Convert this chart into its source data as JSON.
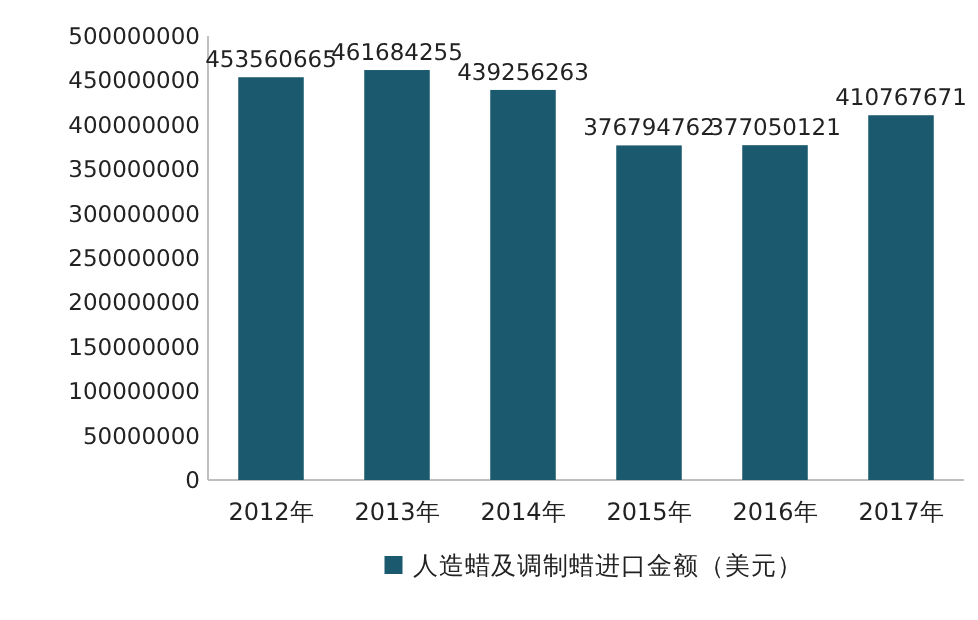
{
  "chart_data": {
    "type": "bar",
    "categories": [
      "2012年",
      "2013年",
      "2014年",
      "2015年",
      "2016年",
      "2017年"
    ],
    "series": [
      {
        "name": "人造蜡及调制蜡进口金额（美元）",
        "color": "#1b5a6e",
        "values": [
          453560665,
          461684255,
          439256263,
          376794762,
          377050121,
          410767671
        ]
      }
    ],
    "ylim": [
      0,
      500000000
    ],
    "yticks": [
      0,
      50000000,
      100000000,
      150000000,
      200000000,
      250000000,
      300000000,
      350000000,
      400000000,
      450000000,
      500000000
    ],
    "data_labels": true,
    "legend": "bottom"
  }
}
